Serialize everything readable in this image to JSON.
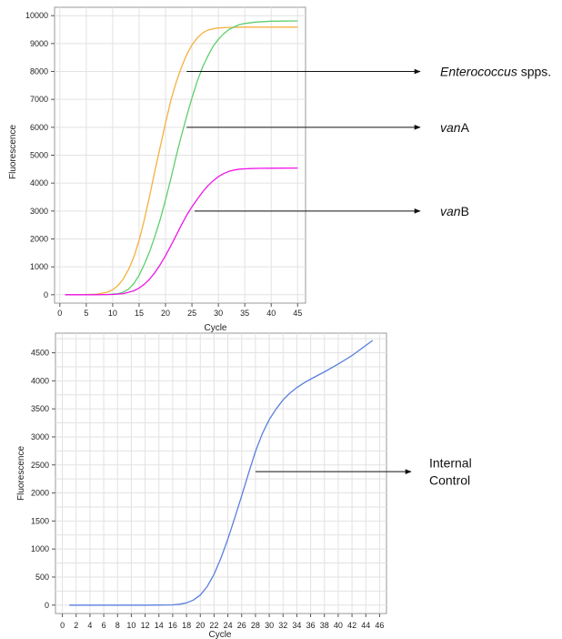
{
  "chart_data": [
    {
      "type": "line",
      "title": "",
      "xlabel": "Cycle",
      "ylabel": "Fluorescence",
      "xlim": [
        -1,
        46.5
      ],
      "ylim": [
        -300,
        10300
      ],
      "xticks": [
        0,
        5,
        10,
        15,
        20,
        25,
        30,
        35,
        40,
        45
      ],
      "yticks": [
        0,
        1000,
        2000,
        3000,
        4000,
        5000,
        6000,
        7000,
        8000,
        9000,
        10000
      ],
      "grid": true,
      "series": [
        {
          "color": "#f5b041",
          "x": [
            1,
            4,
            7,
            9,
            10,
            11,
            12,
            13,
            14,
            15,
            16,
            17,
            18,
            19,
            20,
            21,
            22,
            23,
            24,
            25,
            26,
            27,
            28,
            29,
            30,
            32,
            35,
            40,
            45
          ],
          "y": [
            0,
            0,
            20,
            90,
            180,
            330,
            560,
            900,
            1350,
            1950,
            2700,
            3550,
            4450,
            5300,
            6150,
            6950,
            7600,
            8150,
            8600,
            8950,
            9200,
            9380,
            9480,
            9530,
            9560,
            9580,
            9590,
            9590,
            9590
          ]
        },
        {
          "color": "#5ece6e",
          "x": [
            1,
            5,
            9,
            11,
            12,
            13,
            14,
            15,
            16,
            17,
            18,
            19,
            20,
            21,
            22,
            23,
            24,
            25,
            26,
            27,
            28,
            29,
            30,
            31,
            32,
            33,
            34,
            35,
            37,
            40,
            45
          ],
          "y": [
            0,
            0,
            10,
            40,
            90,
            200,
            400,
            700,
            1100,
            1550,
            2100,
            2700,
            3400,
            4150,
            4950,
            5700,
            6400,
            7050,
            7650,
            8150,
            8550,
            8900,
            9150,
            9350,
            9500,
            9600,
            9680,
            9720,
            9770,
            9800,
            9810
          ]
        },
        {
          "color": "#f016e8",
          "x": [
            1,
            6,
            10,
            12,
            14,
            15,
            16,
            17,
            18,
            19,
            20,
            21,
            22,
            23,
            24,
            25,
            26,
            27,
            28,
            29,
            30,
            31,
            32,
            33,
            34,
            35,
            36,
            38,
            40,
            45
          ],
          "y": [
            0,
            0,
            10,
            40,
            140,
            240,
            380,
            560,
            800,
            1080,
            1400,
            1750,
            2120,
            2500,
            2850,
            3150,
            3420,
            3680,
            3900,
            4080,
            4230,
            4340,
            4420,
            4470,
            4500,
            4510,
            4520,
            4530,
            4535,
            4540
          ]
        }
      ],
      "annotations": [
        {
          "prefix": "",
          "italic": "Enterococcus",
          "suffix": " spps.",
          "x": 24,
          "y": 8000
        },
        {
          "prefix": "",
          "italic": "van",
          "suffix": "A",
          "x": 24,
          "y": 6000
        },
        {
          "prefix": "",
          "italic": "van",
          "suffix": "B",
          "x": 25.5,
          "y": 3000
        }
      ]
    },
    {
      "type": "line",
      "title": "",
      "xlabel": "Cycle",
      "ylabel": "Fluorescence",
      "xlim": [
        -1,
        47
      ],
      "ylim": [
        -150,
        4850
      ],
      "xticks": [
        0,
        2,
        4,
        6,
        8,
        10,
        12,
        14,
        16,
        18,
        20,
        22,
        24,
        26,
        28,
        30,
        32,
        34,
        36,
        38,
        40,
        42,
        44,
        46
      ],
      "yticks": [
        0,
        500,
        1000,
        1500,
        2000,
        2500,
        3000,
        3500,
        4000,
        4500
      ],
      "grid": true,
      "series": [
        {
          "color": "#5b7fe0",
          "x": [
            1,
            4,
            8,
            12,
            16,
            17,
            18,
            19,
            20,
            21,
            22,
            23,
            24,
            25,
            26,
            27,
            28,
            29,
            30,
            31,
            32,
            33,
            34,
            35,
            36,
            38,
            40,
            42,
            45
          ],
          "y": [
            0,
            0,
            0,
            0,
            5,
            15,
            40,
            90,
            180,
            330,
            550,
            840,
            1180,
            1560,
            1950,
            2350,
            2740,
            3060,
            3310,
            3500,
            3660,
            3780,
            3880,
            3960,
            4030,
            4160,
            4300,
            4450,
            4720
          ]
        }
      ],
      "annotations": [
        {
          "lines": [
            "Internal",
            "Control"
          ],
          "x": 28,
          "y": 2380
        }
      ]
    }
  ]
}
